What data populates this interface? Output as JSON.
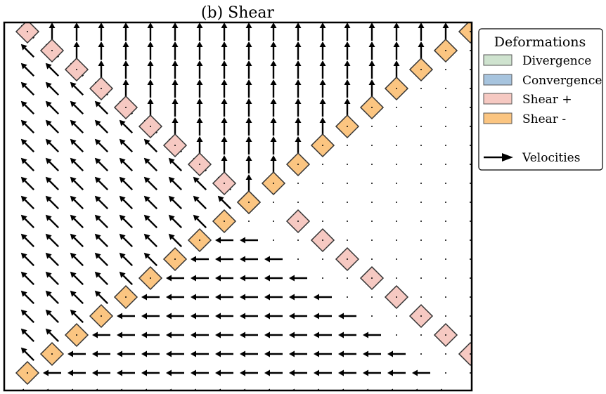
{
  "chart_data": {
    "type": "quiver",
    "title": "(b) Shear",
    "xlabel": "",
    "ylabel": "",
    "grid": false,
    "legend": {
      "title": "Deformations",
      "placement": "outside-right",
      "items": [
        {
          "label": "Divergence",
          "kind": "patch",
          "color": "#cfe3cf"
        },
        {
          "label": "Convergence",
          "kind": "patch",
          "color": "#a7c4de"
        },
        {
          "label": "Shear +",
          "kind": "patch",
          "color": "#f6c9c2"
        },
        {
          "label": "Shear -",
          "kind": "patch",
          "color": "#fbc581"
        },
        {
          "label": "Velocities",
          "kind": "arrow",
          "color": "#000000"
        }
      ]
    },
    "grid_size": {
      "cols": 19,
      "rows": 20
    },
    "velocity_field": {
      "description_regions": [
        {
          "region": "upper band (above shear- diagonal, right of shear+ diagonal)",
          "direction": "up"
        },
        {
          "region": "left wedge (between shear+ diagonals)",
          "direction": "up-left"
        },
        {
          "region": "lower band (below shear- diagonal, left of shear+ diagonal)",
          "direction": "left"
        },
        {
          "region": "right wedge",
          "direction": "zero"
        }
      ]
    },
    "markers": {
      "shear_plus": [
        [
          0,
          0
        ],
        [
          1,
          1
        ],
        [
          2,
          2
        ],
        [
          3,
          3
        ],
        [
          4,
          4
        ],
        [
          5,
          5
        ],
        [
          6,
          6
        ],
        [
          7,
          7
        ],
        [
          8,
          8
        ],
        [
          9,
          9
        ],
        [
          11,
          10
        ],
        [
          12,
          11
        ],
        [
          13,
          12
        ],
        [
          14,
          13
        ],
        [
          15,
          14
        ],
        [
          16,
          15
        ],
        [
          17,
          16
        ],
        [
          18,
          17
        ],
        [
          19,
          18
        ]
      ],
      "shear_minus": [
        [
          18,
          0
        ],
        [
          17,
          1
        ],
        [
          16,
          2
        ],
        [
          15,
          3
        ],
        [
          14,
          4
        ],
        [
          13,
          5
        ],
        [
          12,
          6
        ],
        [
          11,
          7
        ],
        [
          10,
          8
        ],
        [
          9,
          9
        ],
        [
          8,
          10
        ],
        [
          7,
          11
        ],
        [
          6,
          12
        ],
        [
          5,
          13
        ],
        [
          4,
          14
        ],
        [
          3,
          15
        ],
        [
          2,
          16
        ],
        [
          1,
          17
        ],
        [
          0,
          18
        ]
      ],
      "shear_minus_extra": [
        [
          19,
          0
        ]
      ]
    },
    "colors": {
      "shear_plus_fill": "#f6c9c2",
      "shear_minus_fill": "#fbc581",
      "divergence_fill": "#cfe3cf",
      "convergence_fill": "#a7c4de",
      "arrow": "#000000",
      "marker_edge": "#333333"
    }
  }
}
